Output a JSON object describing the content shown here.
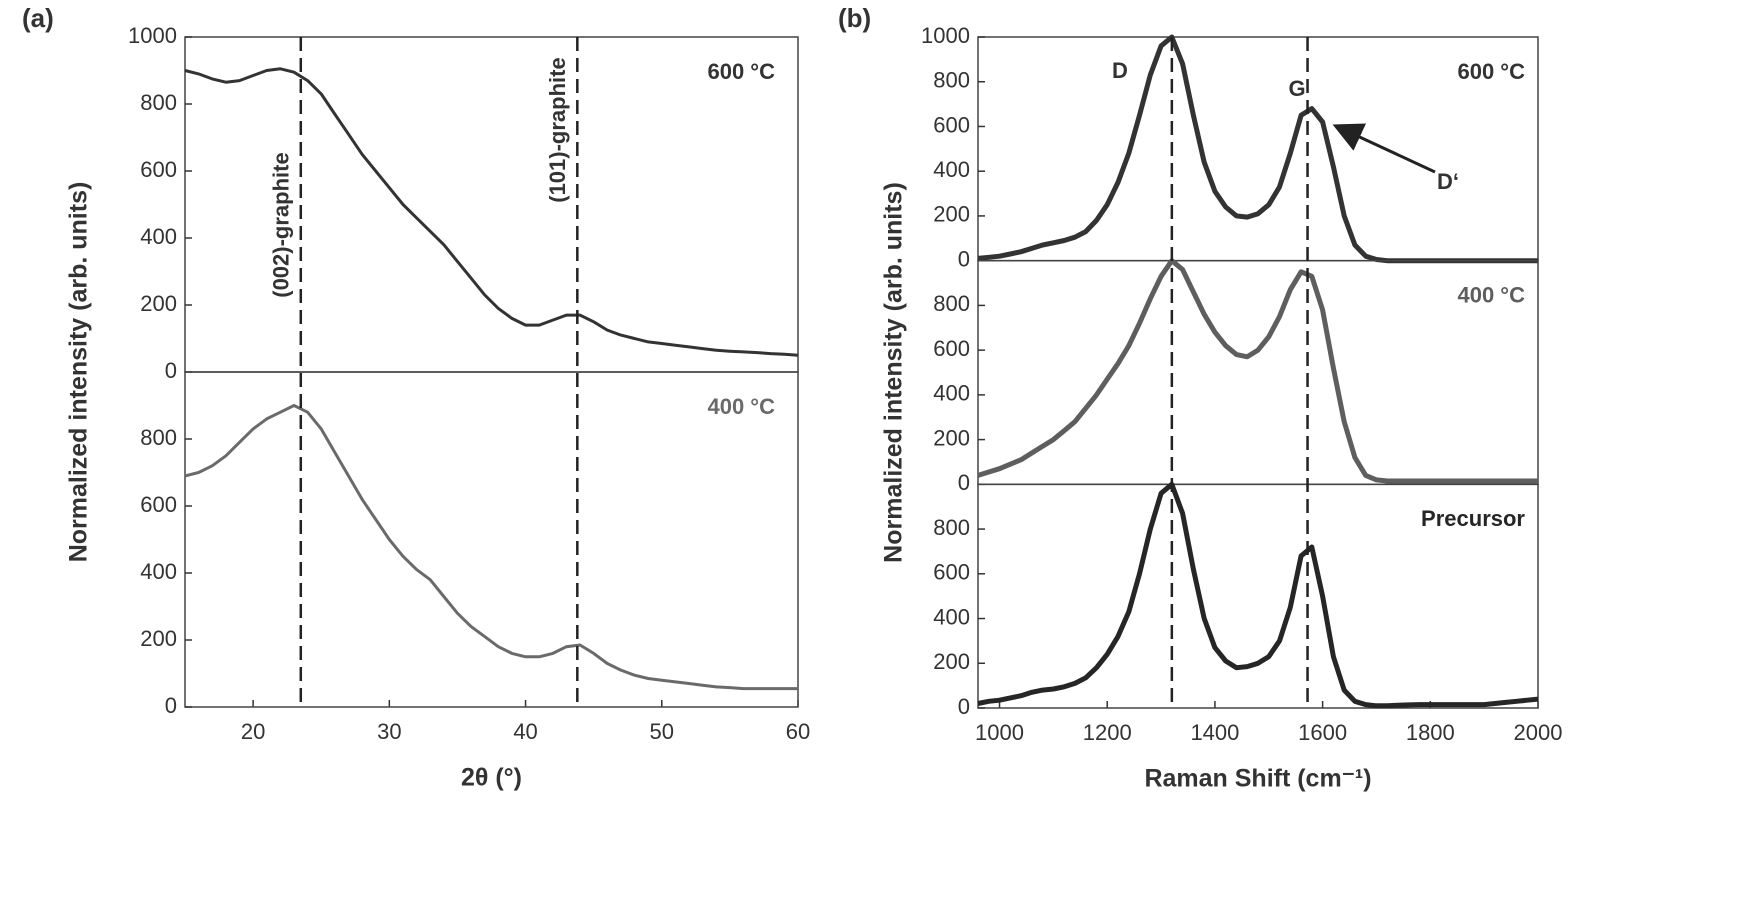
{
  "chart_data": [
    {
      "type": "line",
      "panel_label": "(a)",
      "xlabel": "2θ (°)",
      "ylabel": "Normalized intensity (arb. units)",
      "xlim": [
        15,
        60
      ],
      "xticks": [
        20,
        30,
        40,
        50,
        60
      ],
      "x": [
        15,
        16,
        17,
        18,
        19,
        20,
        21,
        22,
        23,
        24,
        25,
        26,
        27,
        28,
        29,
        30,
        31,
        32,
        33,
        34,
        35,
        36,
        37,
        38,
        39,
        40,
        41,
        42,
        43,
        44,
        45,
        46,
        47,
        48,
        49,
        50,
        51,
        52,
        53,
        54,
        55,
        56,
        57,
        58,
        59,
        60
      ],
      "vlines": [
        {
          "value": 23.5,
          "label": "(002)-graphite"
        },
        {
          "value": 43.8,
          "label": "(101)-graphite"
        }
      ],
      "subplots": [
        {
          "label": "600 °C",
          "color": "#333333",
          "ylim": [
            0,
            1000
          ],
          "yticks": [
            0,
            200,
            400,
            600,
            800,
            1000
          ],
          "values": [
            900,
            890,
            875,
            865,
            870,
            885,
            900,
            905,
            895,
            870,
            830,
            770,
            710,
            650,
            600,
            550,
            500,
            460,
            420,
            380,
            330,
            280,
            230,
            190,
            160,
            140,
            140,
            155,
            170,
            170,
            150,
            125,
            110,
            100,
            90,
            85,
            80,
            75,
            70,
            65,
            62,
            60,
            58,
            55,
            53,
            50
          ]
        },
        {
          "label": "400 °C",
          "color": "#6a6a6a",
          "ylim": [
            0,
            1000
          ],
          "yticks": [
            0,
            200,
            400,
            600,
            800
          ],
          "values": [
            690,
            700,
            720,
            750,
            790,
            830,
            860,
            880,
            900,
            880,
            830,
            760,
            690,
            620,
            560,
            500,
            450,
            410,
            380,
            330,
            280,
            240,
            210,
            180,
            160,
            150,
            150,
            160,
            180,
            185,
            160,
            130,
            110,
            95,
            85,
            80,
            75,
            70,
            65,
            60,
            58,
            55,
            55,
            55,
            55,
            55
          ]
        }
      ]
    },
    {
      "type": "line",
      "panel_label": "(b)",
      "xlabel": "Raman Shift (cm⁻¹)",
      "ylabel": "Normalized intensity (arb. units)",
      "xlim": [
        960,
        2000
      ],
      "xticks": [
        1000,
        1200,
        1400,
        1600,
        1800,
        2000
      ],
      "x": [
        960,
        980,
        1000,
        1020,
        1040,
        1060,
        1080,
        1100,
        1120,
        1140,
        1160,
        1180,
        1200,
        1220,
        1240,
        1260,
        1280,
        1300,
        1320,
        1340,
        1360,
        1380,
        1400,
        1420,
        1440,
        1460,
        1480,
        1500,
        1520,
        1540,
        1560,
        1580,
        1600,
        1620,
        1640,
        1660,
        1680,
        1700,
        1720,
        1740,
        1760,
        1780,
        1800,
        1820,
        1840,
        1860,
        1880,
        1900,
        1920,
        1940,
        1960,
        1980,
        2000
      ],
      "vlines": [
        {
          "value": 1320
        },
        {
          "value": 1572
        }
      ],
      "peak_labels": [
        "D",
        "G",
        "D‘"
      ],
      "subplots": [
        {
          "label": "600 °C",
          "color": "#333333",
          "ylim": [
            0,
            1000
          ],
          "yticks": [
            0,
            200,
            400,
            600,
            800,
            1000
          ],
          "values": [
            10,
            15,
            20,
            30,
            40,
            55,
            70,
            80,
            90,
            105,
            130,
            180,
            250,
            350,
            480,
            650,
            830,
            960,
            1000,
            880,
            650,
            440,
            310,
            240,
            200,
            195,
            210,
            250,
            330,
            480,
            650,
            680,
            620,
            420,
            200,
            70,
            20,
            5,
            0,
            0,
            0,
            0,
            0,
            0,
            0,
            0,
            0,
            0,
            0,
            0,
            0,
            0,
            0
          ]
        },
        {
          "label": "400 °C",
          "color": "#5e5e5e",
          "ylim": [
            0,
            1000
          ],
          "yticks": [
            0,
            200,
            400,
            600,
            800
          ],
          "values": [
            40,
            55,
            70,
            90,
            110,
            140,
            170,
            200,
            240,
            280,
            340,
            400,
            470,
            540,
            620,
            720,
            830,
            930,
            1000,
            960,
            860,
            760,
            680,
            620,
            580,
            570,
            600,
            660,
            750,
            870,
            950,
            930,
            780,
            520,
            280,
            120,
            40,
            20,
            15,
            15,
            15,
            15,
            15,
            15,
            15,
            15,
            15,
            15,
            15,
            15,
            15,
            15,
            15
          ]
        },
        {
          "label": "Precursor",
          "color": "#262626",
          "ylim": [
            0,
            1000
          ],
          "yticks": [
            0,
            200,
            400,
            600,
            800
          ],
          "values": [
            20,
            30,
            35,
            45,
            55,
            70,
            80,
            85,
            95,
            110,
            135,
            180,
            240,
            320,
            430,
            600,
            800,
            960,
            1000,
            870,
            620,
            400,
            270,
            210,
            180,
            185,
            200,
            230,
            300,
            450,
            680,
            720,
            500,
            230,
            80,
            30,
            15,
            10,
            10,
            12,
            14,
            15,
            15,
            15,
            15,
            15,
            15,
            15,
            20,
            25,
            30,
            35,
            40
          ]
        }
      ]
    }
  ]
}
